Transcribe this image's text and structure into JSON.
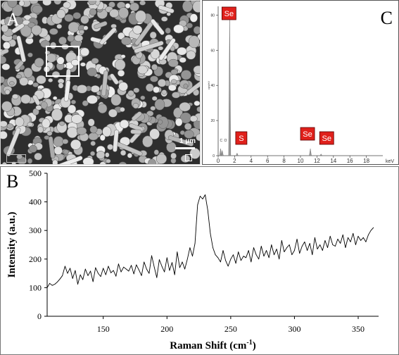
{
  "panels": {
    "a": {
      "letter": "A",
      "scale_bar_label": "1 µm"
    },
    "b": {
      "letter": "B"
    },
    "c": {
      "letter": "C"
    }
  },
  "chart_data": [
    {
      "panel": "C",
      "type": "bar",
      "xlabel": "keV",
      "ylabel": "cps/eV",
      "xlim": [
        0,
        20
      ],
      "ylim": [
        0,
        85
      ],
      "x_ticks": [
        0,
        2,
        4,
        6,
        8,
        10,
        12,
        14,
        16,
        18
      ],
      "y_ticks": [
        0,
        20,
        40,
        60,
        80
      ],
      "peaks": [
        {
          "x": 0.3,
          "y": 4
        },
        {
          "x": 0.5,
          "y": 3
        },
        {
          "x": 1.4,
          "y": 82
        },
        {
          "x": 2.3,
          "y": 1.5
        },
        {
          "x": 11.2,
          "y": 4
        },
        {
          "x": 12.5,
          "y": 1
        }
      ],
      "small_peak_labels": [
        "C",
        "O"
      ],
      "element_labels": [
        {
          "text": "Se",
          "x": 1.4
        },
        {
          "text": "S",
          "x": 2.3
        },
        {
          "text": "Se",
          "x": 11.2
        },
        {
          "text": "Se",
          "x": 12.5
        }
      ],
      "label_color": "#e0201b"
    },
    {
      "panel": "B",
      "type": "line",
      "xlabel": "Raman Shift (cm",
      "xlabel_superscript": "-1",
      "xlabel_close": ")",
      "ylabel": "Intensity (a.u.)",
      "xlim": [
        106,
        366
      ],
      "ylim": [
        0,
        500
      ],
      "x_ticks": [
        150,
        200,
        250,
        300,
        350
      ],
      "y_ticks": [
        0,
        100,
        200,
        300,
        400,
        500
      ],
      "grid": false,
      "series": [
        {
          "x": [
            106,
            108,
            110,
            112,
            114,
            116,
            118,
            120,
            122,
            124,
            126,
            128,
            130,
            132,
            134,
            136,
            138,
            140,
            142,
            144,
            146,
            148,
            150,
            152,
            154,
            156,
            158,
            160,
            162,
            164,
            166,
            168,
            170,
            172,
            174,
            176,
            178,
            180,
            182,
            184,
            186,
            188,
            190,
            192,
            194,
            196,
            198,
            200,
            202,
            204,
            206,
            208,
            210,
            212,
            214,
            216,
            218,
            220,
            222,
            224,
            226,
            228,
            230,
            232,
            234,
            236,
            238,
            240,
            242,
            244,
            246,
            248,
            250,
            252,
            254,
            256,
            258,
            260,
            262,
            264,
            266,
            268,
            270,
            272,
            274,
            276,
            278,
            280,
            282,
            284,
            286,
            288,
            290,
            292,
            294,
            296,
            298,
            300,
            302,
            304,
            306,
            308,
            310,
            312,
            314,
            316,
            318,
            320,
            322,
            324,
            326,
            328,
            330,
            332,
            334,
            336,
            338,
            340,
            342,
            344,
            346,
            348,
            350,
            352,
            354,
            356,
            358,
            360,
            362
          ],
          "values": [
            100,
            115,
            108,
            112,
            120,
            130,
            142,
            175,
            150,
            168,
            132,
            160,
            112,
            145,
            128,
            165,
            142,
            158,
            121,
            170,
            150,
            139,
            168,
            145,
            175,
            152,
            160,
            140,
            183,
            155,
            172,
            165,
            158,
            178,
            148,
            180,
            162,
            142,
            190,
            165,
            150,
            212,
            172,
            135,
            198,
            175,
            155,
            205,
            160,
            188,
            145,
            225,
            170,
            190,
            165,
            200,
            240,
            210,
            255,
            390,
            420,
            410,
            425,
            370,
            290,
            240,
            215,
            205,
            190,
            230,
            195,
            175,
            200,
            215,
            185,
            225,
            195,
            210,
            205,
            230,
            190,
            240,
            215,
            200,
            245,
            210,
            230,
            205,
            250,
            215,
            235,
            200,
            265,
            225,
            240,
            250,
            215,
            230,
            270,
            220,
            245,
            260,
            230,
            255,
            215,
            275,
            235,
            250,
            230,
            265,
            240,
            280,
            250,
            245,
            270,
            255,
            285,
            240,
            275,
            260,
            290,
            250,
            280,
            265,
            275,
            260,
            285,
            300,
            310
          ]
        }
      ]
    }
  ]
}
